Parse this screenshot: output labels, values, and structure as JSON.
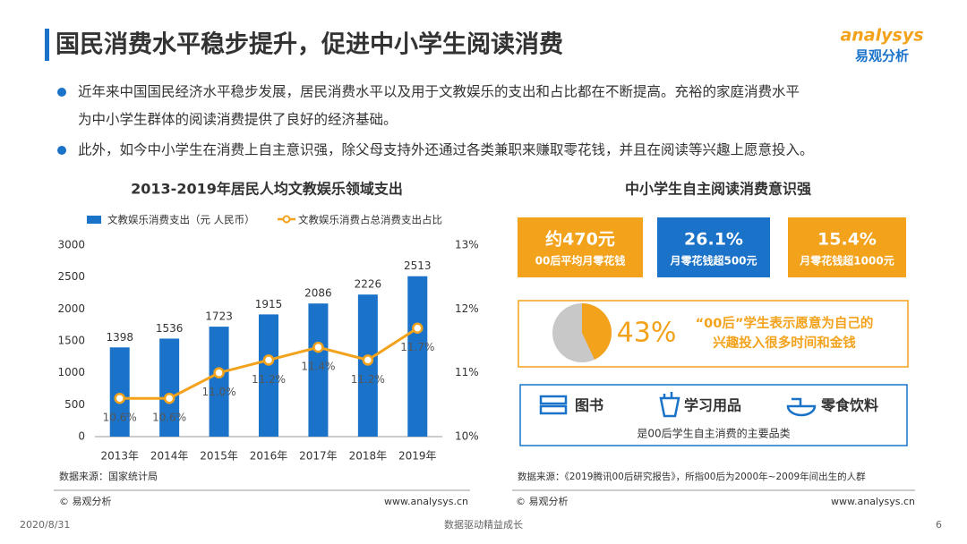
{
  "header": {
    "title": "国民消费水平稳步提升，促进中小学生阅读消费",
    "logo": "analysys",
    "logo_cn": "易观分析"
  },
  "bullets": [
    [
      "近年来中国国民经济水平稳步发展，居民消费水平以及用于文教娱乐的支出和占比都在不断提高。充裕的家庭消费水平",
      "为中小学生群体的阅读消费提供了良好的经济基础。"
    ],
    [
      "此外，如今中小学生在消费上自主意识强，除父母支持外还通过各类兼职来赚取零花钱，并且在阅读等兴趣上愿意投入。"
    ]
  ],
  "chart_data": {
    "type": "combo",
    "title": "2013-2019年居民人均文教娱乐领域支出",
    "categories": [
      "2013年",
      "2014年",
      "2015年",
      "2016年",
      "2017年",
      "2018年",
      "2019年"
    ],
    "series": [
      {
        "name": "文教娱乐消费支出（元 人民币）",
        "type": "bar",
        "color": "#1a73c8",
        "values": [
          1398,
          1536,
          1723,
          1915,
          2086,
          2226,
          2513
        ]
      },
      {
        "name": "文教娱乐消费占总消费支出占比",
        "type": "line",
        "axis": "y2",
        "color": "#f3a21b",
        "values": [
          10.6,
          10.6,
          11.0,
          11.2,
          11.4,
          11.2,
          11.7
        ],
        "value_labels": [
          "10.6%",
          "10.6%",
          "11.0%",
          "11.2%",
          "11.4%",
          "11.2%",
          "11.7%"
        ]
      }
    ],
    "ylim": [
      0,
      3000
    ],
    "yticks": [
      0,
      500,
      1000,
      1500,
      2000,
      2500,
      3000
    ],
    "y2lim": [
      10,
      13
    ],
    "y2ticks": [
      {
        "value": 10,
        "label": "10%"
      },
      {
        "value": 11,
        "label": "11%"
      },
      {
        "value": 12,
        "label": "12%"
      },
      {
        "value": 13,
        "label": "13%"
      }
    ],
    "source": "数据来源：国家统计局"
  },
  "right_panel": {
    "title": "中小学生自主阅读消费意识强",
    "stats": [
      {
        "value": "约470元",
        "label": "00后平均月零花钱"
      },
      {
        "value": "26.1%",
        "label": "月零花钱超500元"
      },
      {
        "value": "15.4%",
        "label": "月零花钱超1000元"
      }
    ],
    "pie": {
      "values": [
        43
      ],
      "value_labels": [
        "43%"
      ],
      "text": [
        "“00后”学生表示愿意为自己的",
        "兴趣投入很多时间和金钱"
      ]
    },
    "items": [
      "图书",
      "学习用品",
      "零食饮料"
    ],
    "items_caption": "是00后学生自主消费的主要品类",
    "source": "数据来源：《2019腾讯00后研究报告》，所指00后为2000年~2009年间出生的人群"
  },
  "footer": {
    "copyright_left": "© 易观分析",
    "url_left": "www.analysys.cn",
    "copyright_right": "© 易观分析",
    "url_right": "www.analysys.cn",
    "date": "2020/8/31",
    "slogan": "数据驱动精益成长",
    "page": "6"
  }
}
